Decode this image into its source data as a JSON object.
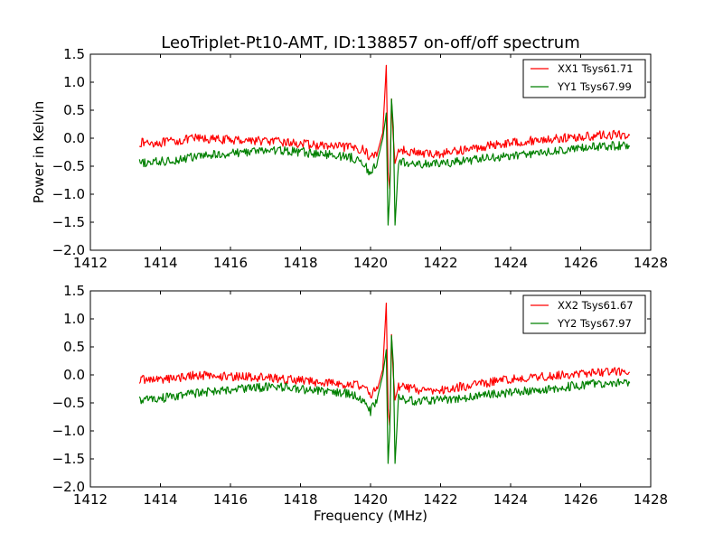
{
  "chart_data": [
    {
      "type": "line",
      "title": "LeoTriplet-Pt10-AMT, ID:138857 on-off/off spectrum",
      "xlabel": "",
      "ylabel": "Power in Kelvin",
      "xlim": [
        1412,
        1428
      ],
      "ylim": [
        -2.0,
        1.5
      ],
      "xticks": [
        "1412",
        "1414",
        "1416",
        "1418",
        "1420",
        "1422",
        "1424",
        "1426",
        "1428"
      ],
      "yticks": [
        "1.5",
        "1.0",
        "0.5",
        "0.0",
        "−0.5",
        "−1.0",
        "−1.5",
        "−2.0"
      ],
      "legend_position": "top-right",
      "grid": false,
      "series": [
        {
          "name": "XX1 Tsys61.71",
          "color": "#ff0000",
          "x": [
            1413.4,
            1414.0,
            1414.5,
            1415.0,
            1415.5,
            1416.0,
            1416.5,
            1417.0,
            1417.5,
            1418.0,
            1418.5,
            1419.0,
            1419.5,
            1419.8,
            1420.0,
            1420.2,
            1420.35,
            1420.45,
            1420.5,
            1420.55,
            1420.6,
            1420.65,
            1420.7,
            1420.8,
            1421.0,
            1421.5,
            1422.0,
            1422.5,
            1423.0,
            1423.5,
            1424.0,
            1424.5,
            1425.0,
            1425.5,
            1426.0,
            1426.5,
            1427.0,
            1427.4
          ],
          "y": [
            -0.08,
            -0.08,
            -0.05,
            0.0,
            -0.02,
            -0.03,
            -0.03,
            -0.05,
            -0.07,
            -0.1,
            -0.13,
            -0.15,
            -0.17,
            -0.2,
            -0.35,
            -0.25,
            0.1,
            1.3,
            -0.6,
            -0.9,
            0.7,
            0.0,
            -0.45,
            -0.2,
            -0.22,
            -0.28,
            -0.28,
            -0.22,
            -0.18,
            -0.12,
            -0.08,
            -0.05,
            -0.02,
            0.0,
            0.02,
            0.05,
            0.06,
            0.05
          ]
        },
        {
          "name": "YY1 Tsys67.99",
          "color": "#008000",
          "x": [
            1413.4,
            1414.0,
            1414.5,
            1415.0,
            1415.5,
            1416.0,
            1416.5,
            1417.0,
            1417.5,
            1418.0,
            1418.5,
            1419.0,
            1419.5,
            1419.8,
            1420.0,
            1420.2,
            1420.35,
            1420.45,
            1420.5,
            1420.55,
            1420.6,
            1420.65,
            1420.7,
            1420.8,
            1421.0,
            1421.5,
            1422.0,
            1422.5,
            1423.0,
            1423.5,
            1424.0,
            1424.5,
            1425.0,
            1425.5,
            1426.0,
            1426.5,
            1427.0,
            1427.4
          ],
          "y": [
            -0.45,
            -0.42,
            -0.38,
            -0.33,
            -0.3,
            -0.27,
            -0.24,
            -0.22,
            -0.22,
            -0.25,
            -0.28,
            -0.3,
            -0.35,
            -0.45,
            -0.65,
            -0.4,
            0.0,
            0.45,
            -1.55,
            -1.0,
            0.7,
            0.2,
            -1.55,
            -0.4,
            -0.45,
            -0.47,
            -0.45,
            -0.42,
            -0.38,
            -0.35,
            -0.32,
            -0.28,
            -0.25,
            -0.22,
            -0.18,
            -0.15,
            -0.13,
            -0.15
          ]
        }
      ]
    },
    {
      "type": "line",
      "title": "",
      "xlabel": "Frequency (MHz)",
      "ylabel": "",
      "xlim": [
        1412,
        1428
      ],
      "ylim": [
        -2.0,
        1.5
      ],
      "xticks": [
        "1412",
        "1414",
        "1416",
        "1418",
        "1420",
        "1422",
        "1424",
        "1426",
        "1428"
      ],
      "yticks": [
        "1.5",
        "1.0",
        "0.5",
        "0.0",
        "−0.5",
        "−1.0",
        "−1.5",
        "−2.0"
      ],
      "legend_position": "top-right",
      "grid": false,
      "series": [
        {
          "name": "XX2 Tsys61.67",
          "color": "#ff0000",
          "x": [
            1413.4,
            1414.0,
            1414.5,
            1415.0,
            1415.5,
            1416.0,
            1416.5,
            1417.0,
            1417.5,
            1418.0,
            1418.5,
            1419.0,
            1419.5,
            1419.8,
            1420.0,
            1420.2,
            1420.35,
            1420.45,
            1420.5,
            1420.55,
            1420.6,
            1420.65,
            1420.7,
            1420.8,
            1421.0,
            1421.5,
            1422.0,
            1422.5,
            1423.0,
            1423.5,
            1424.0,
            1424.5,
            1425.0,
            1425.5,
            1426.0,
            1426.5,
            1427.0,
            1427.4
          ],
          "y": [
            -0.08,
            -0.08,
            -0.05,
            0.0,
            -0.02,
            -0.03,
            -0.03,
            -0.05,
            -0.07,
            -0.1,
            -0.13,
            -0.15,
            -0.17,
            -0.2,
            -0.35,
            -0.25,
            0.1,
            1.28,
            -0.6,
            -0.9,
            0.72,
            0.0,
            -0.45,
            -0.2,
            -0.22,
            -0.28,
            -0.28,
            -0.22,
            -0.18,
            -0.12,
            -0.08,
            -0.05,
            -0.02,
            0.0,
            0.02,
            0.05,
            0.06,
            0.05
          ]
        },
        {
          "name": "YY2 Tsys67.97",
          "color": "#008000",
          "x": [
            1413.4,
            1414.0,
            1414.5,
            1415.0,
            1415.5,
            1416.0,
            1416.5,
            1417.0,
            1417.5,
            1418.0,
            1418.5,
            1419.0,
            1419.5,
            1419.8,
            1420.0,
            1420.2,
            1420.35,
            1420.45,
            1420.5,
            1420.55,
            1420.6,
            1420.65,
            1420.7,
            1420.8,
            1421.0,
            1421.5,
            1422.0,
            1422.5,
            1423.0,
            1423.5,
            1424.0,
            1424.5,
            1425.0,
            1425.5,
            1426.0,
            1426.5,
            1427.0,
            1427.4
          ],
          "y": [
            -0.45,
            -0.42,
            -0.38,
            -0.33,
            -0.3,
            -0.27,
            -0.24,
            -0.22,
            -0.22,
            -0.25,
            -0.28,
            -0.3,
            -0.35,
            -0.45,
            -0.65,
            -0.4,
            0.0,
            0.45,
            -1.58,
            -1.0,
            0.7,
            0.2,
            -1.58,
            -0.4,
            -0.45,
            -0.47,
            -0.45,
            -0.42,
            -0.38,
            -0.35,
            -0.32,
            -0.28,
            -0.25,
            -0.22,
            -0.18,
            -0.15,
            -0.13,
            -0.15
          ]
        }
      ]
    }
  ]
}
